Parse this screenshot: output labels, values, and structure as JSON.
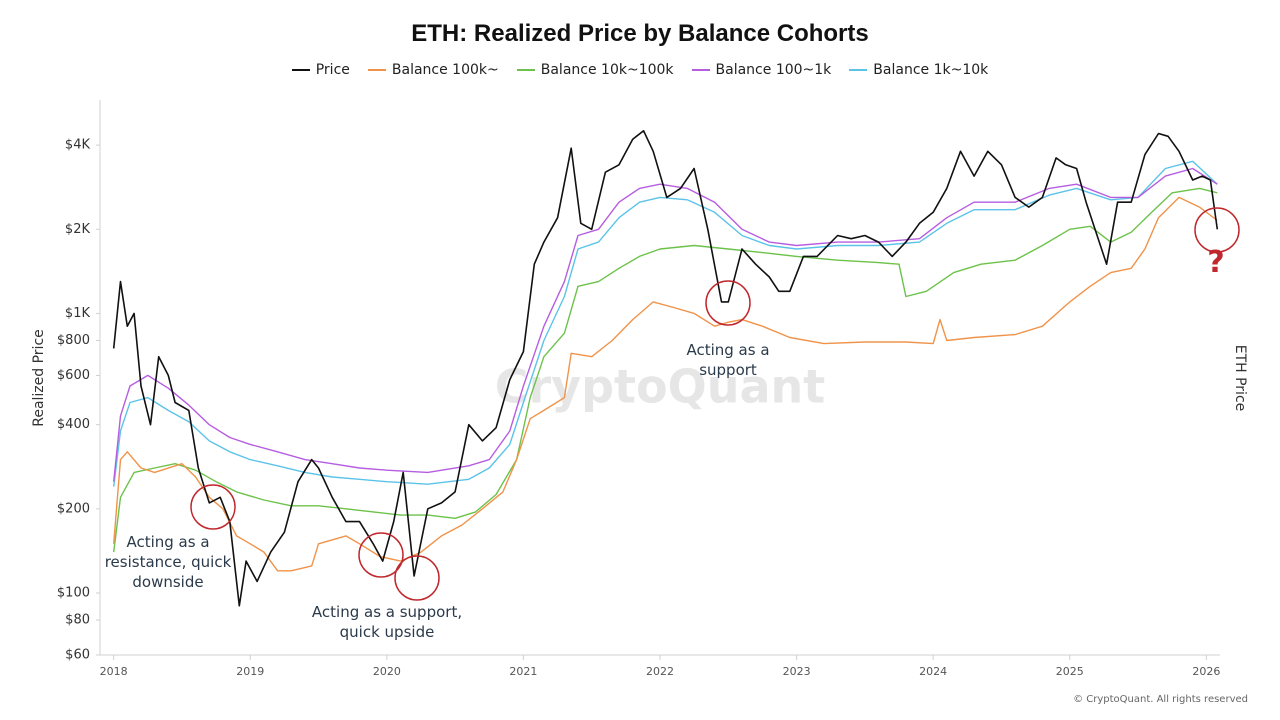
{
  "chart_data": {
    "type": "line",
    "title": "ETH: Realized Price by Balance Cohorts",
    "y_label": "Realized Price",
    "y2_label": "ETH Price",
    "watermark": "CryptoQuant",
    "copyright": "© CryptoQuant. All rights reserved",
    "log_scale": true,
    "legend": "top",
    "xlim": [
      2017.9,
      2026.1
    ],
    "xticks": [
      2018,
      2019,
      2020,
      2021,
      2022,
      2023,
      2024,
      2025,
      2026
    ],
    "ylim": [
      60,
      5800
    ],
    "yticks": [
      {
        "value": 60,
        "label": "$60"
      },
      {
        "value": 80,
        "label": "$80"
      },
      {
        "value": 100,
        "label": "$100"
      },
      {
        "value": 200,
        "label": "$200"
      },
      {
        "value": 400,
        "label": "$400"
      },
      {
        "value": 600,
        "label": "$600"
      },
      {
        "value": 800,
        "label": "$800"
      },
      {
        "value": 1000,
        "label": "$1K"
      },
      {
        "value": 2000,
        "label": "$2K"
      },
      {
        "value": 4000,
        "label": "$4K"
      }
    ],
    "series": [
      {
        "name": "Price",
        "color": "#111111",
        "x": [
          2018.0,
          2018.05,
          2018.1,
          2018.15,
          2018.2,
          2018.27,
          2018.33,
          2018.4,
          2018.45,
          2018.55,
          2018.62,
          2018.7,
          2018.78,
          2018.85,
          2018.92,
          2018.97,
          2019.05,
          2019.15,
          2019.25,
          2019.35,
          2019.45,
          2019.5,
          2019.6,
          2019.7,
          2019.8,
          2019.9,
          2019.97,
          2020.05,
          2020.12,
          2020.2,
          2020.3,
          2020.4,
          2020.5,
          2020.6,
          2020.7,
          2020.8,
          2020.9,
          2021.0,
          2021.08,
          2021.15,
          2021.25,
          2021.35,
          2021.42,
          2021.5,
          2021.6,
          2021.7,
          2021.8,
          2021.88,
          2021.95,
          2022.05,
          2022.15,
          2022.25,
          2022.35,
          2022.45,
          2022.5,
          2022.6,
          2022.7,
          2022.8,
          2022.87,
          2022.95,
          2023.05,
          2023.15,
          2023.3,
          2023.4,
          2023.5,
          2023.6,
          2023.7,
          2023.8,
          2023.9,
          2024.0,
          2024.1,
          2024.2,
          2024.3,
          2024.4,
          2024.5,
          2024.6,
          2024.7,
          2024.8,
          2024.9,
          2024.97,
          2025.05,
          2025.12,
          2025.2,
          2025.27,
          2025.35,
          2025.45,
          2025.55,
          2025.65,
          2025.72,
          2025.8,
          2025.9,
          2025.97,
          2026.03,
          2026.08
        ],
        "values": [
          750,
          1300,
          900,
          1000,
          550,
          400,
          700,
          600,
          480,
          450,
          280,
          210,
          220,
          180,
          90,
          130,
          110,
          140,
          165,
          250,
          300,
          280,
          220,
          180,
          180,
          150,
          130,
          180,
          270,
          115,
          200,
          210,
          230,
          400,
          350,
          390,
          580,
          730,
          1500,
          1800,
          2200,
          3900,
          2100,
          2000,
          3200,
          3400,
          4200,
          4500,
          3800,
          2600,
          2800,
          3300,
          2000,
          1100,
          1100,
          1700,
          1500,
          1350,
          1200,
          1200,
          1600,
          1600,
          1900,
          1850,
          1900,
          1800,
          1600,
          1800,
          2100,
          2300,
          2800,
          3800,
          3100,
          3800,
          3400,
          2600,
          2400,
          2600,
          3600,
          3400,
          3300,
          2500,
          1900,
          1500,
          2500,
          2500,
          3700,
          4400,
          4300,
          3800,
          3000,
          3100,
          3000,
          2000
        ]
      },
      {
        "name": "Balance 100k~",
        "color": "#f0934a",
        "x": [
          2018.0,
          2018.05,
          2018.1,
          2018.2,
          2018.3,
          2018.5,
          2018.6,
          2018.7,
          2018.8,
          2018.9,
          2019.0,
          2019.1,
          2019.2,
          2019.3,
          2019.45,
          2019.5,
          2019.7,
          2019.8,
          2019.95,
          2020.1,
          2020.25,
          2020.4,
          2020.55,
          2020.7,
          2020.85,
          2020.95,
          2021.05,
          2021.15,
          2021.3,
          2021.35,
          2021.5,
          2021.65,
          2021.8,
          2021.95,
          2022.1,
          2022.25,
          2022.4,
          2022.5,
          2022.6,
          2022.75,
          2022.95,
          2023.2,
          2023.5,
          2023.8,
          2024.0,
          2024.05,
          2024.1,
          2024.3,
          2024.6,
          2024.8,
          2025.0,
          2025.15,
          2025.3,
          2025.45,
          2025.55,
          2025.65,
          2025.8,
          2025.95,
          2026.08
        ],
        "values": [
          150,
          300,
          320,
          280,
          270,
          290,
          260,
          220,
          200,
          160,
          150,
          140,
          120,
          120,
          125,
          150,
          160,
          150,
          135,
          130,
          140,
          160,
          175,
          200,
          230,
          300,
          420,
          450,
          500,
          720,
          700,
          800,
          950,
          1100,
          1050,
          1000,
          900,
          930,
          950,
          900,
          820,
          780,
          790,
          790,
          780,
          950,
          800,
          820,
          840,
          900,
          1100,
          1250,
          1400,
          1450,
          1700,
          2200,
          2600,
          2400,
          2150
        ]
      },
      {
        "name": "Balance 10k~100k",
        "color": "#6cc24a",
        "x": [
          2018.0,
          2018.05,
          2018.15,
          2018.3,
          2018.45,
          2018.6,
          2018.75,
          2018.9,
          2019.1,
          2019.3,
          2019.5,
          2019.7,
          2019.9,
          2020.1,
          2020.3,
          2020.5,
          2020.65,
          2020.8,
          2020.95,
          2021.05,
          2021.15,
          2021.3,
          2021.4,
          2021.55,
          2021.7,
          2021.85,
          2022.0,
          2022.25,
          2022.5,
          2022.75,
          2023.0,
          2023.3,
          2023.6,
          2023.75,
          2023.8,
          2023.95,
          2024.15,
          2024.35,
          2024.6,
          2024.8,
          2025.0,
          2025.15,
          2025.3,
          2025.45,
          2025.6,
          2025.75,
          2025.95,
          2026.08
        ],
        "values": [
          140,
          220,
          270,
          280,
          290,
          275,
          250,
          230,
          215,
          205,
          205,
          200,
          195,
          190,
          190,
          185,
          195,
          225,
          300,
          500,
          700,
          850,
          1250,
          1300,
          1450,
          1600,
          1700,
          1750,
          1700,
          1650,
          1600,
          1550,
          1520,
          1500,
          1150,
          1200,
          1400,
          1500,
          1550,
          1750,
          2000,
          2050,
          1800,
          1950,
          2300,
          2700,
          2800,
          2700
        ]
      },
      {
        "name": "Balance 100~1k",
        "color": "#b65de0",
        "x": [
          2018.0,
          2018.05,
          2018.12,
          2018.25,
          2018.4,
          2018.55,
          2018.7,
          2018.85,
          2019.0,
          2019.2,
          2019.4,
          2019.6,
          2019.8,
          2020.0,
          2020.3,
          2020.6,
          2020.75,
          2020.9,
          2021.0,
          2021.15,
          2021.3,
          2021.4,
          2021.55,
          2021.7,
          2021.85,
          2022.0,
          2022.2,
          2022.4,
          2022.6,
          2022.8,
          2023.0,
          2023.3,
          2023.6,
          2023.9,
          2024.1,
          2024.3,
          2024.6,
          2024.85,
          2025.05,
          2025.3,
          2025.5,
          2025.7,
          2025.9,
          2026.08
        ],
        "values": [
          250,
          430,
          550,
          600,
          540,
          470,
          400,
          360,
          340,
          320,
          300,
          290,
          280,
          275,
          270,
          285,
          300,
          380,
          550,
          900,
          1300,
          1900,
          2000,
          2500,
          2800,
          2900,
          2800,
          2500,
          2000,
          1800,
          1750,
          1800,
          1800,
          1850,
          2200,
          2500,
          2500,
          2800,
          2900,
          2600,
          2600,
          3100,
          3300,
          2900
        ]
      },
      {
        "name": "Balance 1k~10k",
        "color": "#5cc3e8",
        "x": [
          2018.0,
          2018.05,
          2018.12,
          2018.25,
          2018.4,
          2018.55,
          2018.7,
          2018.85,
          2019.0,
          2019.2,
          2019.4,
          2019.6,
          2019.8,
          2020.0,
          2020.3,
          2020.6,
          2020.75,
          2020.9,
          2021.0,
          2021.15,
          2021.3,
          2021.4,
          2021.55,
          2021.7,
          2021.85,
          2022.0,
          2022.2,
          2022.4,
          2022.6,
          2022.8,
          2023.0,
          2023.3,
          2023.6,
          2023.9,
          2024.1,
          2024.3,
          2024.6,
          2024.85,
          2025.05,
          2025.3,
          2025.5,
          2025.7,
          2025.9,
          2026.08
        ],
        "values": [
          240,
          380,
          480,
          500,
          450,
          410,
          350,
          320,
          300,
          285,
          270,
          260,
          255,
          250,
          245,
          255,
          280,
          340,
          480,
          800,
          1150,
          1700,
          1800,
          2200,
          2500,
          2600,
          2550,
          2300,
          1900,
          1750,
          1700,
          1750,
          1750,
          1800,
          2100,
          2350,
          2350,
          2650,
          2800,
          2550,
          2600,
          3300,
          3500,
          2900
        ]
      }
    ],
    "annotations": [
      {
        "lines": [
          "Acting as a",
          "resistance, quick",
          "downside"
        ]
      },
      {
        "lines": [
          "Acting as a support,",
          "quick upside"
        ]
      },
      {
        "lines": [
          "Acting as a",
          "support"
        ]
      },
      {
        "lines": [
          "?"
        ]
      }
    ]
  }
}
